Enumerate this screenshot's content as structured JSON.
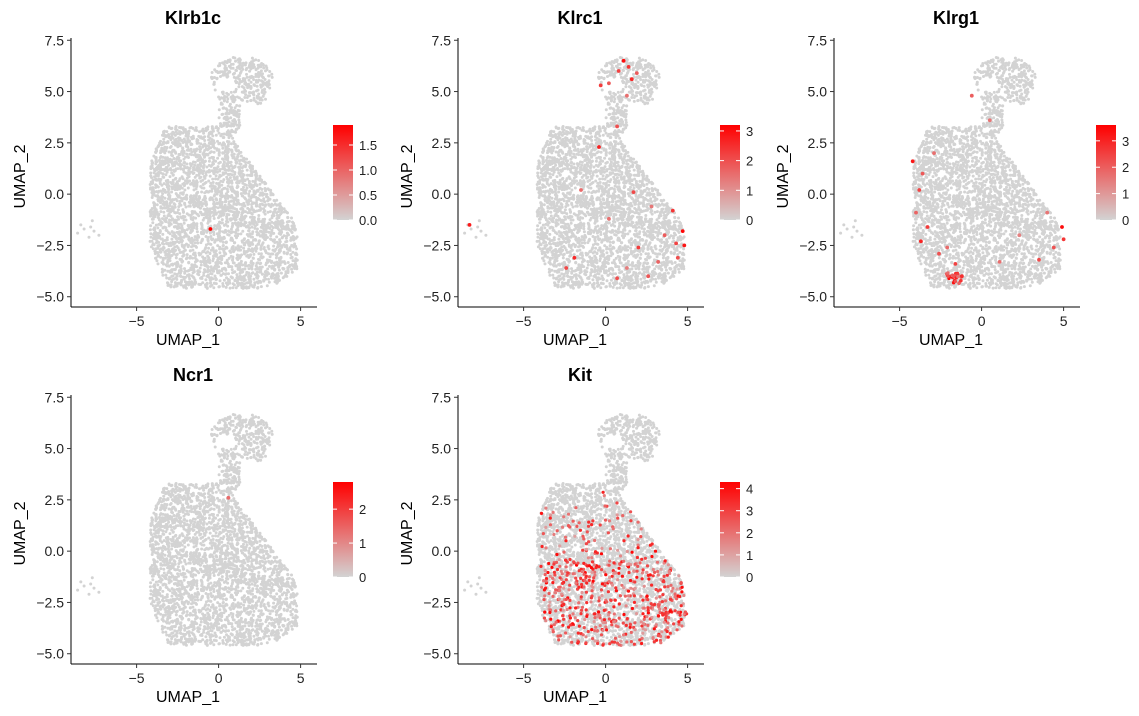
{
  "colors": {
    "low": "#d3d3d3",
    "high": "#ff0000"
  },
  "chart_data": [
    {
      "type": "scatter",
      "title": "Klrb1c",
      "xlabel": "UMAP_1",
      "ylabel": "UMAP_2",
      "xlim": [
        -9,
        6
      ],
      "ylim": [
        -5.5,
        8
      ],
      "xticks": [
        -5,
        0,
        5
      ],
      "yticks": [
        -5.0,
        -2.5,
        0.0,
        2.5,
        5.0,
        7.5
      ],
      "xtick_labels": [
        "−5",
        "0",
        "5"
      ],
      "ytick_labels": [
        "−5.0",
        "−2.5",
        "0.0",
        "2.5",
        "5.0",
        "7.5"
      ],
      "legend": {
        "position": "right",
        "max": 1.9,
        "ticks": [
          0.0,
          0.5,
          1.0,
          1.5
        ],
        "tick_labels": [
          "0.0",
          "0.5",
          "1.0",
          "1.5"
        ]
      },
      "expressing_points": [
        [
          -0.5,
          -1.7,
          1.9
        ]
      ],
      "hotspots": []
    },
    {
      "type": "scatter",
      "title": "Klrc1",
      "xlabel": "UMAP_1",
      "ylabel": "UMAP_2",
      "xlim": [
        -9,
        6
      ],
      "ylim": [
        -5.5,
        8
      ],
      "xticks": [
        -5,
        0,
        5
      ],
      "yticks": [
        -5.0,
        -2.5,
        0.0,
        2.5,
        5.0,
        7.5
      ],
      "xtick_labels": [
        "−5",
        "0",
        "5"
      ],
      "ytick_labels": [
        "−5.0",
        "−2.5",
        "0.0",
        "2.5",
        "5.0",
        "7.5"
      ],
      "legend": {
        "position": "right",
        "max": 3.2,
        "ticks": [
          0,
          1,
          2,
          3
        ],
        "tick_labels": [
          "0",
          "1",
          "2",
          "3"
        ]
      },
      "expressing_points": [
        [
          1.1,
          6.5,
          3.0
        ],
        [
          1.4,
          6.2,
          2.4
        ],
        [
          0.8,
          6.0,
          2.2
        ],
        [
          1.9,
          5.9,
          1.8
        ],
        [
          1.6,
          5.6,
          2.6
        ],
        [
          0.2,
          5.4,
          1.9
        ],
        [
          -0.3,
          5.3,
          2.3
        ],
        [
          1.3,
          4.8,
          1.5
        ],
        [
          0.7,
          3.3,
          2.0
        ],
        [
          -0.4,
          2.3,
          2.7
        ],
        [
          -1.5,
          0.2,
          1.6
        ],
        [
          1.7,
          0.1,
          2.1
        ],
        [
          2.8,
          -0.6,
          1.4
        ],
        [
          4.1,
          -0.8,
          2.4
        ],
        [
          4.7,
          -1.8,
          3.1
        ],
        [
          4.3,
          -2.4,
          2.2
        ],
        [
          4.8,
          -2.5,
          2.9
        ],
        [
          4.4,
          -3.1,
          2.0
        ],
        [
          3.2,
          -3.3,
          1.7
        ],
        [
          2.0,
          -2.6,
          2.3
        ],
        [
          1.3,
          -3.6,
          1.3
        ],
        [
          0.7,
          -4.1,
          2.0
        ],
        [
          -1.9,
          -3.1,
          2.6
        ],
        [
          -2.4,
          -3.6,
          2.1
        ],
        [
          -8.3,
          -1.5,
          2.8
        ],
        [
          3.6,
          -2.0,
          1.8
        ],
        [
          0.2,
          -1.2,
          1.5
        ],
        [
          2.6,
          -4.0,
          1.9
        ]
      ],
      "hotspots": []
    },
    {
      "type": "scatter",
      "title": "Klrg1",
      "xlabel": "UMAP_1",
      "ylabel": "UMAP_2",
      "xlim": [
        -9,
        6
      ],
      "ylim": [
        -5.5,
        8
      ],
      "xticks": [
        -5,
        0,
        5
      ],
      "yticks": [
        -5.0,
        -2.5,
        0.0,
        2.5,
        5.0,
        7.5
      ],
      "xtick_labels": [
        "−5",
        "0",
        "5"
      ],
      "ytick_labels": [
        "−5.0",
        "−2.5",
        "0.0",
        "2.5",
        "5.0",
        "7.5"
      ],
      "legend": {
        "position": "right",
        "max": 3.6,
        "ticks": [
          0,
          1,
          2,
          3
        ],
        "tick_labels": [
          "0",
          "1",
          "2",
          "3"
        ]
      },
      "expressing_points": [
        [
          -4.2,
          1.6,
          3.2
        ],
        [
          -3.6,
          1.0,
          2.1
        ],
        [
          -2.9,
          2.0,
          1.7
        ],
        [
          -3.8,
          0.2,
          2.4
        ],
        [
          -4.0,
          -0.9,
          1.9
        ],
        [
          -3.3,
          -1.6,
          2.6
        ],
        [
          -3.7,
          -2.3,
          3.0
        ],
        [
          -2.6,
          -2.9,
          2.2
        ],
        [
          -2.1,
          -2.6,
          1.8
        ],
        [
          -1.6,
          -3.4,
          2.5
        ],
        [
          -1.2,
          -4.0,
          2.8
        ],
        [
          -0.6,
          4.8,
          2.0
        ],
        [
          0.5,
          3.6,
          1.6
        ],
        [
          4.9,
          -1.6,
          3.4
        ],
        [
          5.0,
          -2.2,
          2.7
        ],
        [
          4.4,
          -2.6,
          2.2
        ],
        [
          4.0,
          -0.9,
          1.6
        ],
        [
          3.5,
          -3.2,
          2.3
        ],
        [
          1.1,
          -3.3,
          1.7
        ],
        [
          2.3,
          -2.0,
          1.4
        ]
      ],
      "hotspots": [
        {
          "center": [
            -1.7,
            -4.1
          ],
          "spread": [
            0.45,
            0.3
          ],
          "count": 28,
          "value_range": [
            1.5,
            3.5
          ]
        }
      ]
    },
    {
      "type": "scatter",
      "title": "Ncr1",
      "xlabel": "UMAP_1",
      "ylabel": "UMAP_2",
      "xlim": [
        -9,
        6
      ],
      "ylim": [
        -5.5,
        8
      ],
      "xticks": [
        -5,
        0,
        5
      ],
      "yticks": [
        -5.0,
        -2.5,
        0.0,
        2.5,
        5.0,
        7.5
      ],
      "xtick_labels": [
        "−5",
        "0",
        "5"
      ],
      "ytick_labels": [
        "−5.0",
        "−2.5",
        "0.0",
        "2.5",
        "5.0",
        "7.5"
      ],
      "legend": {
        "position": "right",
        "max": 2.8,
        "ticks": [
          0,
          1,
          2
        ],
        "tick_labels": [
          "0",
          "1",
          "2"
        ]
      },
      "expressing_points": [
        [
          0.6,
          2.6,
          1.4
        ]
      ],
      "hotspots": []
    },
    {
      "type": "scatter",
      "title": "Kit",
      "xlabel": "UMAP_1",
      "ylabel": "UMAP_2",
      "xlim": [
        -9,
        6
      ],
      "ylim": [
        -5.5,
        8
      ],
      "xticks": [
        -5,
        0,
        5
      ],
      "yticks": [
        -5.0,
        -2.5,
        0.0,
        2.5,
        5.0,
        7.5
      ],
      "xtick_labels": [
        "−5",
        "0",
        "5"
      ],
      "ytick_labels": [
        "−5.0",
        "−2.5",
        "0.0",
        "2.5",
        "5.0",
        "7.5"
      ],
      "legend": {
        "position": "right",
        "max": 4.3,
        "ticks": [
          0,
          1,
          2,
          3,
          4
        ],
        "tick_labels": [
          "0",
          "1",
          "2",
          "3",
          "4"
        ]
      },
      "expressing_points": [],
      "hotspots": [
        {
          "region": "lower-body",
          "count": 600,
          "value_range": [
            1.0,
            4.2
          ]
        }
      ]
    }
  ]
}
